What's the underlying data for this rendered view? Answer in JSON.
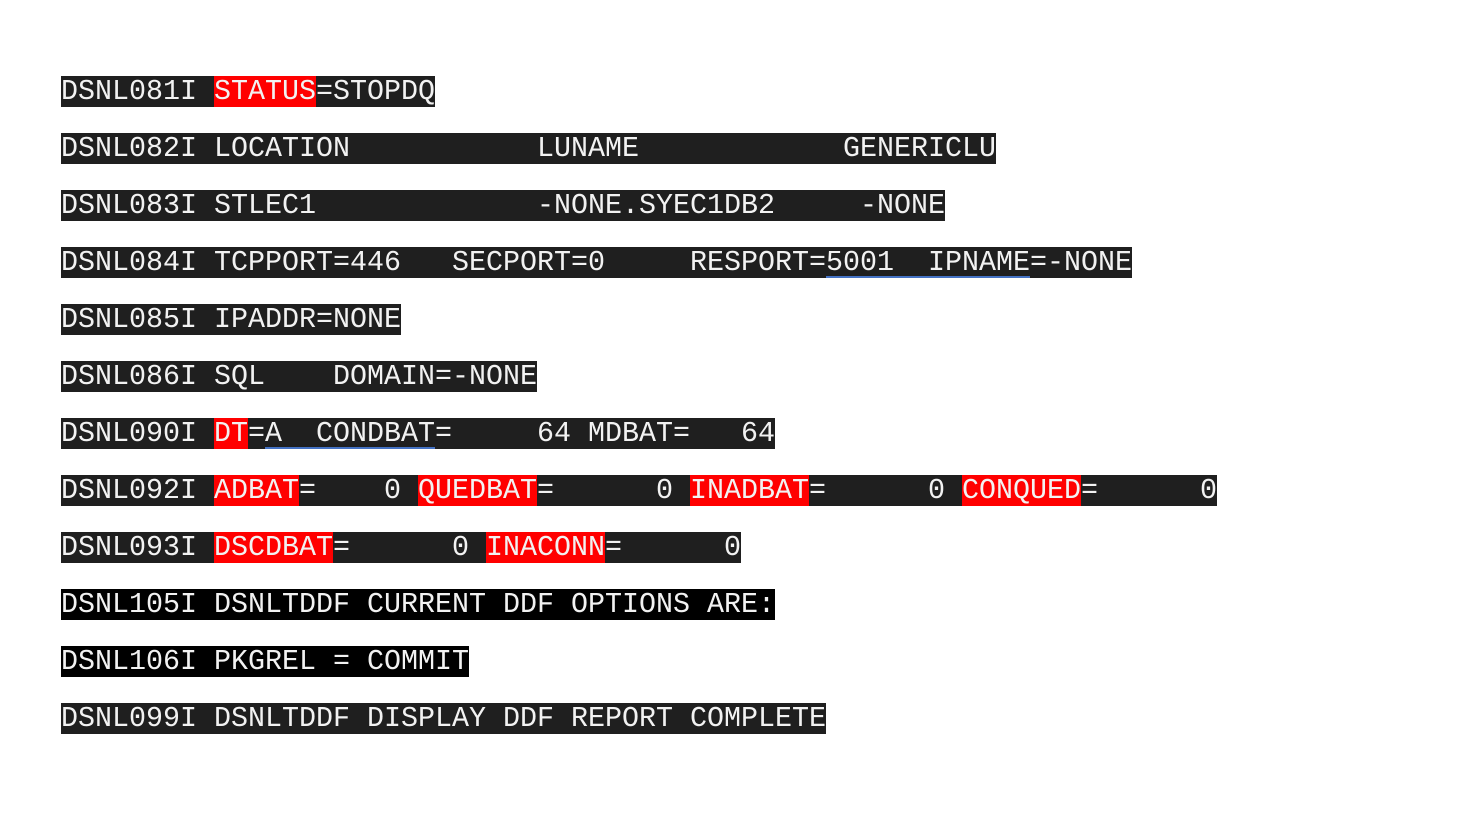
{
  "colors": {
    "line_background": "#1f1f1f",
    "line_background_dark": "#000000",
    "highlight": "#ff0000",
    "underline": "#4472c4",
    "text": "#f2f2f2"
  },
  "lines": [
    {
      "id": "dsnl081i",
      "bg": "#1f1f1f",
      "segments": [
        {
          "text": "DSNL081I "
        },
        {
          "text": "STATUS",
          "style": "highlight"
        },
        {
          "text": "=STOPDQ"
        }
      ]
    },
    {
      "id": "dsnl082i",
      "bg": "#1f1f1f",
      "segments": [
        {
          "text": "DSNL082I LOCATION           LUNAME            GENERICLU"
        }
      ]
    },
    {
      "id": "dsnl083i",
      "bg": "#1f1f1f",
      "segments": [
        {
          "text": "DSNL083I STLEC1             -NONE.SYEC1DB2     -NONE"
        }
      ]
    },
    {
      "id": "dsnl084i",
      "bg": "#1f1f1f",
      "segments": [
        {
          "text": "DSNL084I TCPPORT=446   SECPORT=0     RESPORT="
        },
        {
          "text": "5001  IPNAME",
          "style": "underline"
        },
        {
          "text": "=-NONE"
        }
      ]
    },
    {
      "id": "dsnl085i",
      "bg": "#1f1f1f",
      "segments": [
        {
          "text": "DSNL085I IPADDR=NONE"
        }
      ]
    },
    {
      "id": "dsnl086i",
      "bg": "#1f1f1f",
      "segments": [
        {
          "text": "DSNL086I SQL    DOMAIN=-NONE"
        }
      ]
    },
    {
      "id": "dsnl090i",
      "bg": "#1f1f1f",
      "segments": [
        {
          "text": "DSNL090I "
        },
        {
          "text": "DT",
          "style": "highlight"
        },
        {
          "text": "="
        },
        {
          "text": "A  CONDBAT",
          "style": "underline"
        },
        {
          "text": "=     64 MDBAT=   64"
        }
      ]
    },
    {
      "id": "dsnl092i",
      "bg": "#1f1f1f",
      "segments": [
        {
          "text": "DSNL092I "
        },
        {
          "text": "ADBAT",
          "style": "highlight"
        },
        {
          "text": "=    0 "
        },
        {
          "text": "QUEDBAT",
          "style": "highlight"
        },
        {
          "text": "=      0 "
        },
        {
          "text": "INADBAT",
          "style": "highlight"
        },
        {
          "text": "=      0 "
        },
        {
          "text": "CONQUED",
          "style": "highlight"
        },
        {
          "text": "=      0"
        }
      ]
    },
    {
      "id": "dsnl093i",
      "bg": "#1f1f1f",
      "segments": [
        {
          "text": "DSNL093I "
        },
        {
          "text": "DSCDBAT",
          "style": "highlight"
        },
        {
          "text": "=      0 "
        },
        {
          "text": "INACONN",
          "style": "highlight"
        },
        {
          "text": "=      0"
        }
      ]
    },
    {
      "id": "dsnl105i",
      "bg": "#000000",
      "segments": [
        {
          "text": "DSNL105I DSNLTDDF CURRENT DDF OPTIONS ARE:"
        }
      ]
    },
    {
      "id": "dsnl106i",
      "bg": "#000000",
      "segments": [
        {
          "text": "DSNL106I PKGREL = COMMIT"
        }
      ]
    },
    {
      "id": "dsnl099i",
      "bg": "#1f1f1f",
      "segments": [
        {
          "text": "DSNL099I DSNLTDDF DISPLAY DDF REPORT COMPLETE"
        }
      ]
    }
  ]
}
